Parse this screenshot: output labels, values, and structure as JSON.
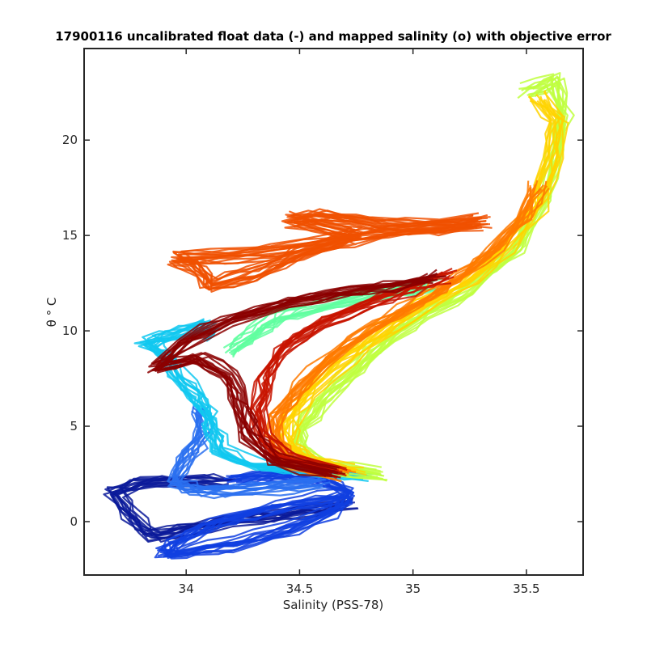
{
  "chart_data": {
    "type": "line",
    "title": "17900116 uncalibrated float data (-) and mapped salinity (o) with objective error",
    "xlabel": "Salinity (PSS-78)",
    "ylabel": "θ ° C",
    "xlim": [
      33.55,
      35.75
    ],
    "ylim": [
      -2.8,
      24.8
    ],
    "xticks": [
      34,
      34.5,
      35,
      35.5
    ],
    "xtick_labels": [
      "34",
      "34.5",
      "35",
      "35.5"
    ],
    "yticks": [
      0,
      5,
      10,
      15,
      20
    ],
    "ytick_labels": [
      "0",
      "5",
      "10",
      "15",
      "20"
    ],
    "grid": false,
    "legend": "none",
    "colormap": "jet (color encodes profile number)",
    "colors": {
      "early_profiles": "#00008f",
      "cyan_profiles": "#00e5ff",
      "yellow_profiles": "#ffd400",
      "late_profiles": "#8b0000",
      "axes": "#262626"
    },
    "series": [
      {
        "color": "#0a1a9a",
        "groups": [
          [
            34.72,
            1.0
          ],
          [
            34.6,
            0.6
          ],
          [
            34.4,
            0.3
          ],
          [
            34.2,
            0.0
          ],
          [
            34.0,
            -0.4
          ],
          [
            33.85,
            -0.8
          ],
          [
            33.75,
            0.3
          ],
          [
            33.68,
            1.5
          ],
          [
            33.8,
            2.0
          ],
          [
            34.0,
            2.1
          ],
          [
            34.2,
            2.0
          ]
        ]
      },
      {
        "color": "#1040e0",
        "groups": [
          [
            34.7,
            1.3
          ],
          [
            34.5,
            1.0
          ],
          [
            34.3,
            0.5
          ],
          [
            34.1,
            -0.2
          ],
          [
            33.95,
            -1.2
          ],
          [
            33.9,
            -1.7
          ],
          [
            34.0,
            -1.6
          ],
          [
            34.2,
            -1.2
          ],
          [
            34.45,
            -0.4
          ],
          [
            34.65,
            0.6
          ],
          [
            34.72,
            1.5
          ],
          [
            34.6,
            2.2
          ],
          [
            34.4,
            2.5
          ],
          [
            34.2,
            2.2
          ]
        ]
      },
      {
        "color": "#2a70f0",
        "groups": [
          [
            34.6,
            2.0
          ],
          [
            34.4,
            1.8
          ],
          [
            34.2,
            1.6
          ],
          [
            34.05,
            1.6
          ],
          [
            33.95,
            2.0
          ],
          [
            33.98,
            3.0
          ],
          [
            34.05,
            4.0
          ],
          [
            34.08,
            5.0
          ],
          [
            34.05,
            6.0
          ]
        ]
      },
      {
        "color": "#10c8f0",
        "groups": [
          [
            34.8,
            2.4
          ],
          [
            34.55,
            2.6
          ],
          [
            34.3,
            2.9
          ],
          [
            34.15,
            3.6
          ],
          [
            34.12,
            4.6
          ],
          [
            34.1,
            5.5
          ],
          [
            34.05,
            6.5
          ],
          [
            33.95,
            7.8
          ],
          [
            33.9,
            8.8
          ],
          [
            33.82,
            9.3
          ],
          [
            33.95,
            9.8
          ],
          [
            34.1,
            10.3
          ],
          [
            34.05,
            9.6
          ]
        ]
      },
      {
        "color": "#60ffa0",
        "groups": [
          [
            34.2,
            9.0
          ],
          [
            34.3,
            10.0
          ],
          [
            34.4,
            10.8
          ],
          [
            34.6,
            11.4
          ],
          [
            34.8,
            11.9
          ],
          [
            34.95,
            12.2
          ],
          [
            35.1,
            12.4
          ]
        ]
      },
      {
        "color": "#c0ff40",
        "groups": [
          [
            34.85,
            2.5
          ],
          [
            34.6,
            3.0
          ],
          [
            34.48,
            3.8
          ],
          [
            34.5,
            5.0
          ],
          [
            34.6,
            6.5
          ],
          [
            34.75,
            8.2
          ],
          [
            34.9,
            9.8
          ],
          [
            35.05,
            11.0
          ],
          [
            35.25,
            12.3
          ],
          [
            35.45,
            14.5
          ],
          [
            35.58,
            17.0
          ],
          [
            35.62,
            19.5
          ],
          [
            35.66,
            21.5
          ],
          [
            35.62,
            23.2
          ],
          [
            35.5,
            22.6
          ]
        ]
      },
      {
        "color": "#ffd400",
        "groups": [
          [
            34.75,
            2.6
          ],
          [
            34.55,
            3.1
          ],
          [
            34.45,
            4.0
          ],
          [
            34.45,
            5.2
          ],
          [
            34.55,
            6.8
          ],
          [
            34.7,
            8.5
          ],
          [
            34.88,
            10.0
          ],
          [
            35.05,
            11.3
          ],
          [
            35.25,
            12.6
          ],
          [
            35.42,
            14.4
          ],
          [
            35.55,
            16.6
          ],
          [
            35.62,
            19.0
          ],
          [
            35.64,
            21.0
          ],
          [
            35.56,
            22.2
          ]
        ]
      },
      {
        "color": "#ff7a00",
        "groups": [
          [
            34.7,
            2.5
          ],
          [
            34.45,
            3.2
          ],
          [
            34.38,
            4.2
          ],
          [
            34.4,
            5.5
          ],
          [
            34.5,
            7.0
          ],
          [
            34.65,
            8.8
          ],
          [
            34.85,
            10.3
          ],
          [
            35.05,
            11.6
          ],
          [
            35.2,
            12.8
          ],
          [
            35.35,
            14.2
          ],
          [
            35.48,
            15.8
          ],
          [
            35.55,
            17.6
          ]
        ]
      },
      {
        "color": "#f05000",
        "groups": [
          [
            35.3,
            15.8
          ],
          [
            34.9,
            15.2
          ],
          [
            34.55,
            14.4
          ],
          [
            34.2,
            13.9
          ],
          [
            33.95,
            13.8
          ],
          [
            34.05,
            13.2
          ],
          [
            34.1,
            12.3
          ],
          [
            34.3,
            13.0
          ],
          [
            34.5,
            14.0
          ],
          [
            34.75,
            15.0
          ],
          [
            34.45,
            15.8
          ],
          [
            34.6,
            16.0
          ],
          [
            34.85,
            15.6
          ],
          [
            35.1,
            15.4
          ],
          [
            35.3,
            15.6
          ]
        ]
      },
      {
        "color": "#c81400",
        "groups": [
          [
            34.68,
            2.6
          ],
          [
            34.45,
            3.3
          ],
          [
            34.33,
            4.4
          ],
          [
            34.32,
            5.8
          ],
          [
            34.35,
            7.4
          ],
          [
            34.42,
            9.0
          ],
          [
            34.6,
            10.4
          ],
          [
            34.8,
            11.4
          ],
          [
            35.0,
            12.2
          ],
          [
            35.15,
            12.9
          ]
        ]
      },
      {
        "color": "#8b0000",
        "groups": [
          [
            34.65,
            2.55
          ],
          [
            34.4,
            3.2
          ],
          [
            34.28,
            4.5
          ],
          [
            34.25,
            6.0
          ],
          [
            34.2,
            7.6
          ],
          [
            34.05,
            8.6
          ],
          [
            33.88,
            8.1
          ],
          [
            34.0,
            9.4
          ],
          [
            34.2,
            10.6
          ],
          [
            34.45,
            11.5
          ],
          [
            34.7,
            12.0
          ],
          [
            34.9,
            12.4
          ],
          [
            35.1,
            12.8
          ]
        ]
      }
    ]
  }
}
